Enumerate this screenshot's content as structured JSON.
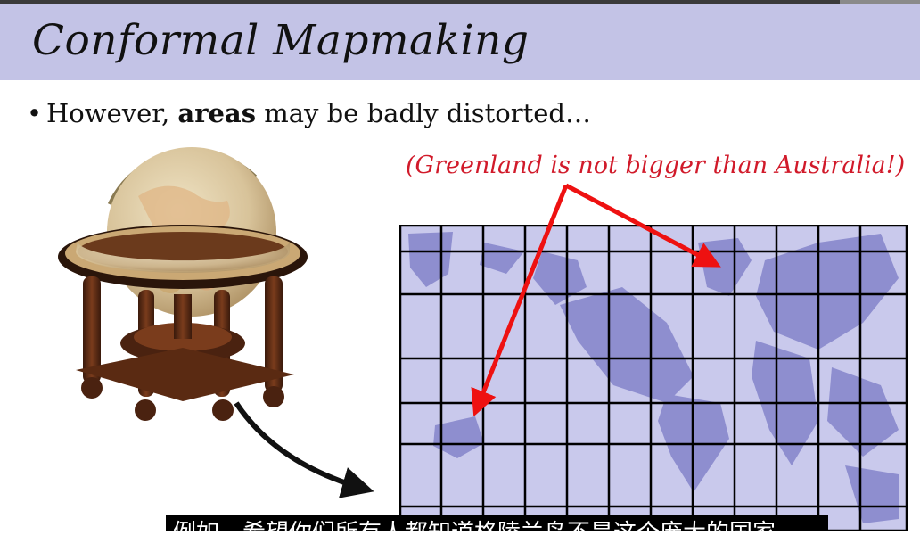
{
  "slide": {
    "title": "Conformal Mapmaking",
    "bullet_prefix": "However, ",
    "bullet_bold": "areas",
    "bullet_suffix": " may be badly distorted…",
    "annotation": "(Greenland is not bigger than Australia!)"
  },
  "subtitle_caption": "例如，希望你们所有人都知道格陵兰岛不是这个庞大的国家",
  "colors": {
    "title_band": "#c3c3e6",
    "map_water": "#c9c9ec",
    "map_land": "#8e8ecf",
    "annotation": "#d11a2a",
    "arrow_red": "#ee1111"
  },
  "icons": {
    "globe": "antique-globe-image",
    "bullet": "bullet-dot"
  }
}
